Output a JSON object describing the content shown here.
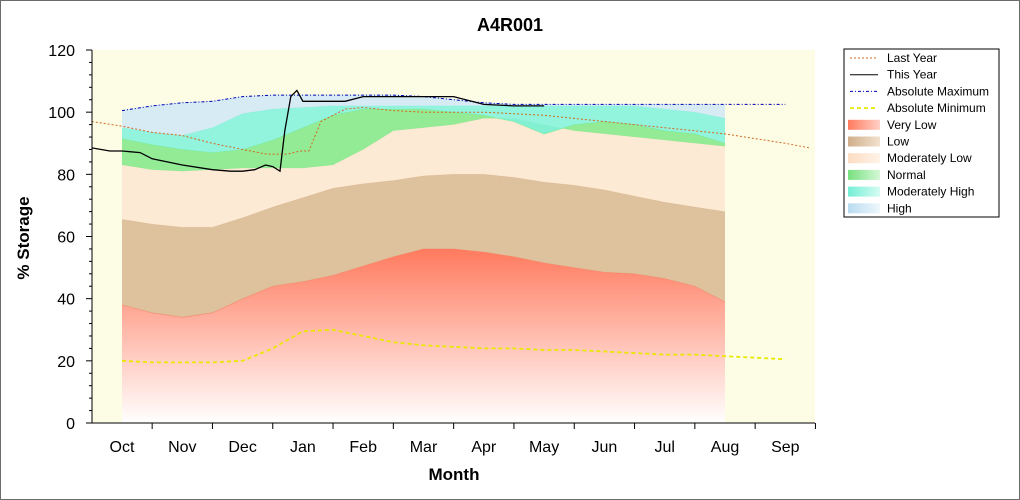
{
  "chart_data": {
    "type": "area",
    "title": "A4R001",
    "xlabel": "Month",
    "ylabel": "% Storage",
    "ylim": [
      0,
      120
    ],
    "yticks": [
      0,
      20,
      40,
      60,
      80,
      100,
      120
    ],
    "categories": [
      "Oct",
      "Nov",
      "Dec",
      "Jan",
      "Feb",
      "Mar",
      "Apr",
      "May",
      "Jun",
      "Jul",
      "Aug",
      "Sep"
    ],
    "grid": false,
    "legend_position": "right",
    "band_x": [
      0,
      0.5,
      1,
      1.5,
      2,
      2.5,
      3,
      3.5,
      4,
      4.5,
      5,
      5.5,
      6,
      6.5,
      7,
      7.5,
      8,
      8.5,
      9,
      9.5,
      10,
      10.5,
      11
    ],
    "bands": [
      {
        "name": "Very Low",
        "color": "#ff8066",
        "values": [
          38,
          35.5,
          34,
          35.5,
          40,
          44,
          45.5,
          47.5,
          50.5,
          53.5,
          56,
          56,
          55,
          53.5,
          51.5,
          50,
          48.5,
          48,
          46.5,
          44,
          39,
          null,
          null
        ],
        "lower": [
          0,
          0,
          0,
          0,
          0,
          0,
          0,
          0,
          0,
          0,
          0,
          0,
          0,
          0,
          0,
          0,
          0,
          0,
          0,
          0,
          0,
          null,
          null
        ]
      },
      {
        "name": "Low",
        "color": "#d8b791",
        "values": [
          65.5,
          64,
          63,
          63,
          66,
          69.5,
          72.5,
          75.5,
          77,
          78,
          79.5,
          80,
          80,
          79,
          77.5,
          76.5,
          75,
          73,
          71,
          69.5,
          68,
          null,
          null
        ]
      },
      {
        "name": "Moderately Low",
        "color": "#fde6d1",
        "values": [
          83,
          81.5,
          81,
          81.5,
          82,
          82,
          82,
          83,
          88,
          94,
          95,
          96,
          98,
          98,
          96,
          94,
          93,
          92,
          91,
          90,
          89,
          null,
          null
        ]
      },
      {
        "name": "Normal",
        "color": "#80e887",
        "values": [
          91.5,
          89.5,
          88,
          87,
          88,
          91,
          95,
          99,
          101,
          101,
          101,
          100,
          99,
          97,
          93,
          96,
          97,
          96,
          94,
          93,
          90,
          null,
          null
        ]
      },
      {
        "name": "Moderately High",
        "color": "#80f2dc",
        "values": [
          95,
          93.5,
          92.5,
          95,
          99.5,
          101,
          101.5,
          102,
          102,
          102,
          102,
          102,
          102,
          102,
          102,
          102,
          102,
          102,
          101,
          100,
          98,
          null,
          null
        ]
      },
      {
        "name": "High",
        "color": "#cfe8f5",
        "values": [
          100.5,
          102,
          103,
          103.5,
          105,
          105.5,
          105.5,
          105.5,
          105.5,
          105.5,
          105,
          104,
          103,
          102.5,
          102.5,
          102.5,
          102.5,
          102.5,
          102.5,
          102.5,
          102.5,
          null,
          null
        ]
      }
    ],
    "series": [
      {
        "name": "Last Year",
        "color": "#d2691e",
        "style": "dotted",
        "x": [
          -0.5,
          0,
          0.5,
          1,
          1.5,
          2,
          2.4,
          2.75,
          2.95,
          3.1,
          3.3,
          3.7,
          4,
          4.5,
          5,
          5.5,
          6,
          6.5,
          7,
          7.5,
          8,
          8.5,
          9,
          9.5,
          10,
          10.5,
          11,
          11.4
        ],
        "values": [
          97,
          95.5,
          93.5,
          92.5,
          90,
          88,
          86.5,
          86.5,
          87.5,
          87.5,
          97,
          101,
          101.5,
          100.5,
          100,
          100,
          100,
          99.5,
          99,
          98,
          97,
          96,
          95,
          94,
          93,
          91.5,
          90,
          88.5
        ]
      },
      {
        "name": "This Year",
        "color": "#000000",
        "style": "solid",
        "x": [
          -0.5,
          -0.2,
          0,
          0.3,
          0.5,
          1,
          1.5,
          1.8,
          2,
          2.2,
          2.38,
          2.5,
          2.62,
          2.7,
          2.8,
          2.9,
          3,
          3.3,
          3.5,
          3.7,
          4,
          4.5,
          5,
          5.3,
          5.5,
          6,
          6.5,
          7
        ],
        "values": [
          88.5,
          87.5,
          87.5,
          87,
          85,
          83,
          81.5,
          81,
          81,
          81.5,
          83,
          82.5,
          81,
          94,
          105,
          107,
          103.5,
          103.5,
          103.5,
          103.5,
          105,
          105,
          105,
          105,
          105,
          102.5,
          102,
          102
        ]
      },
      {
        "name": "Absolute Maximum",
        "color": "#0000b4",
        "style": "dashdot",
        "x": [
          0,
          0.5,
          1,
          1.5,
          2,
          2.5,
          3,
          3.5,
          4,
          4.5,
          5,
          5.5,
          6,
          6.5,
          7,
          7.5,
          8,
          8.5,
          9,
          9.5,
          10,
          10.5,
          11
        ],
        "values": [
          100.5,
          102,
          103,
          103.5,
          105,
          105.5,
          105.5,
          105.5,
          105.5,
          105.5,
          105,
          104,
          103,
          102.5,
          102.5,
          102.5,
          102.5,
          102.5,
          102.5,
          102.5,
          102.5,
          102.5,
          102.5
        ]
      },
      {
        "name": "Absolute Minimum",
        "color": "#e8e800",
        "style": "dashed",
        "x": [
          0,
          0.5,
          1,
          1.5,
          2,
          2.5,
          3,
          3.5,
          4,
          4.5,
          5,
          5.5,
          6,
          6.5,
          7,
          7.5,
          8,
          8.5,
          9,
          9.5,
          10,
          10.5,
          11
        ],
        "values": [
          20,
          19.5,
          19.5,
          19.5,
          20,
          24,
          29.5,
          30,
          28,
          26,
          25,
          24.5,
          24,
          24,
          23.5,
          23.5,
          23,
          22.5,
          22,
          22,
          21.5,
          21,
          20.5
        ]
      }
    ],
    "legend": [
      {
        "label": "Last Year",
        "kind": "line",
        "key": "Last Year"
      },
      {
        "label": "This Year",
        "kind": "line",
        "key": "This Year"
      },
      {
        "label": "Absolute Maximum",
        "kind": "line",
        "key": "Absolute Maximum"
      },
      {
        "label": "Absolute Minimum",
        "kind": "line",
        "key": "Absolute Minimum"
      },
      {
        "label": "Very Low",
        "kind": "band",
        "key": "Very Low"
      },
      {
        "label": "Low",
        "kind": "band",
        "key": "Low"
      },
      {
        "label": "Moderately Low",
        "kind": "band",
        "key": "Moderately Low"
      },
      {
        "label": "Normal",
        "kind": "band",
        "key": "Normal"
      },
      {
        "label": "Moderately High",
        "kind": "band",
        "key": "Moderately High"
      },
      {
        "label": "High",
        "kind": "band",
        "key": "High"
      }
    ],
    "colors": {
      "plot_background": "#fdfde6",
      "axis": "#000000"
    }
  }
}
